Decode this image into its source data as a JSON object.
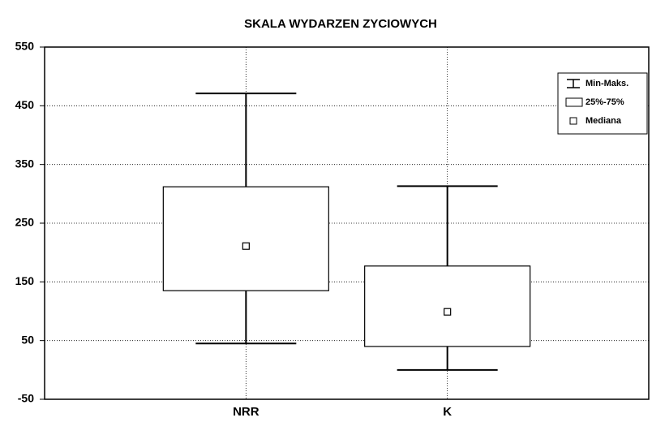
{
  "chart_data": {
    "type": "box",
    "title": "SKALA WYDARZEN ZYCIOWYCH",
    "categories": [
      "NRR",
      "K"
    ],
    "min": [
      45,
      0
    ],
    "q1": [
      135,
      40
    ],
    "median": [
      211,
      99
    ],
    "q3": [
      312,
      177
    ],
    "max": [
      471,
      313
    ],
    "ylim": [
      -50,
      550
    ],
    "yticks": [
      -50,
      50,
      150,
      250,
      350,
      450,
      550
    ],
    "grid": true,
    "color": "#000000",
    "box_fill": "#ffffff",
    "legend": {
      "position": "upper right",
      "entries": [
        "Min-Maks.",
        "25%-75%",
        "Mediana"
      ]
    }
  }
}
